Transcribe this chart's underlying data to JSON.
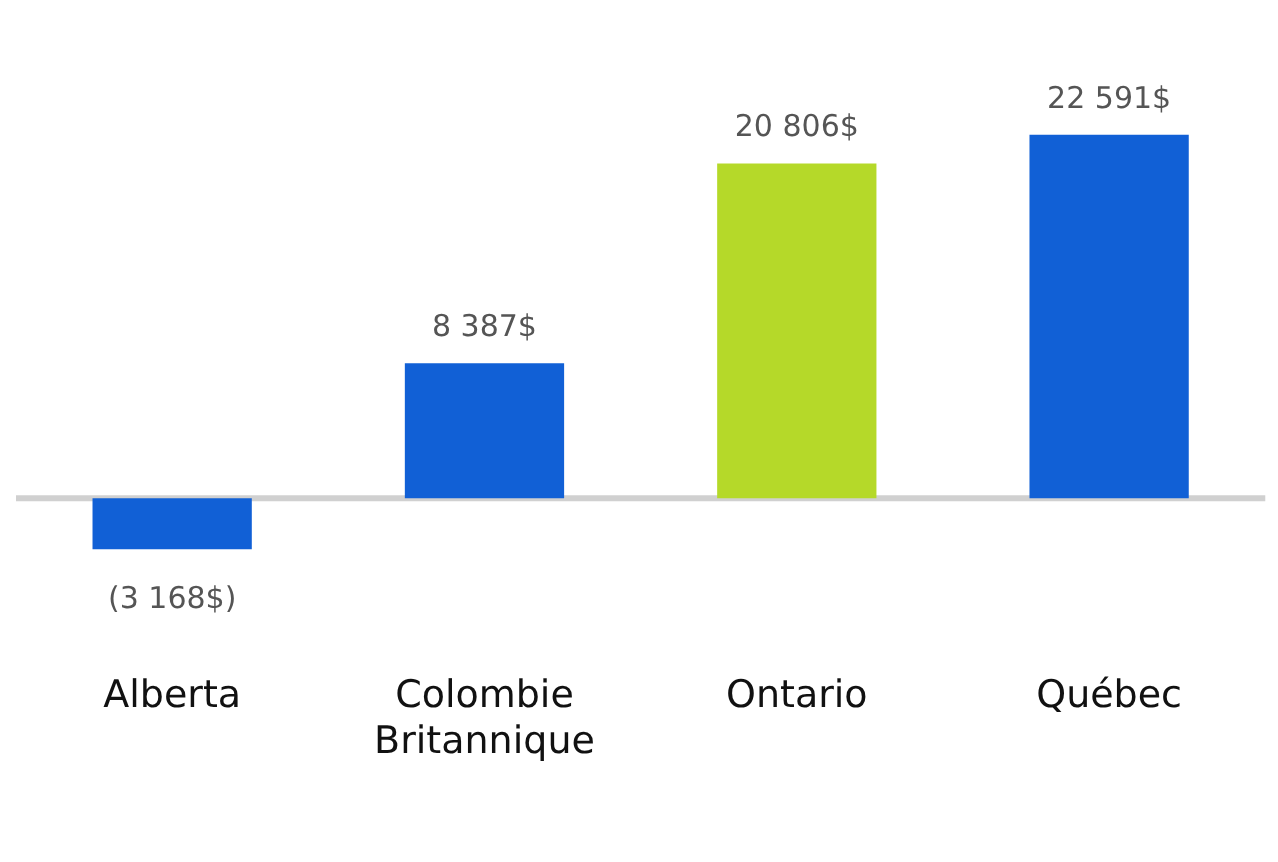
{
  "chart_data": {
    "type": "bar",
    "categories": [
      "Alberta",
      "Colombie Britannique",
      "Ontario",
      "Québec"
    ],
    "values": [
      -3168,
      8387,
      20806,
      22591
    ],
    "colors": [
      "#1160d6",
      "#1160d6",
      "#b5d929",
      "#1160d6"
    ],
    "value_labels": [
      "(3 168$)",
      "8 387$",
      "20 806$",
      "22 591$"
    ],
    "grid": false,
    "legend": false
  }
}
